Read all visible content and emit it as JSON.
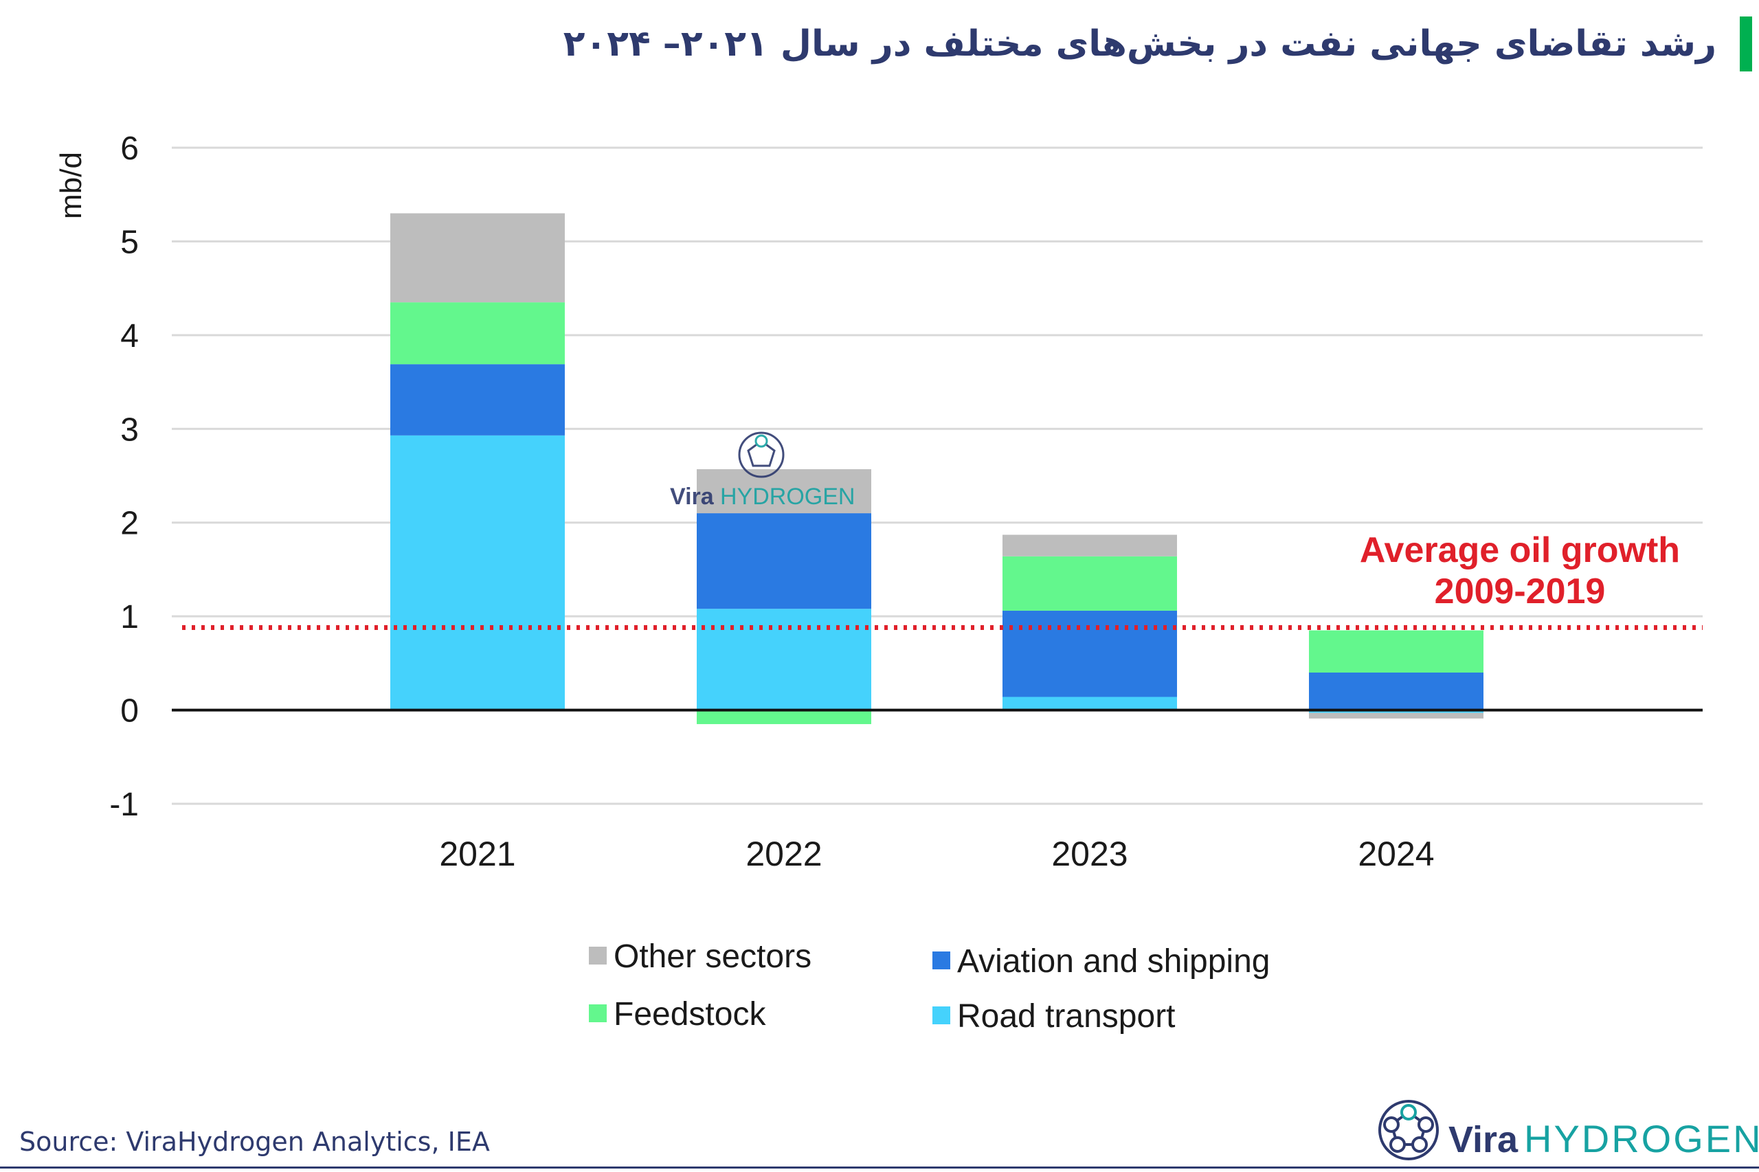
{
  "page": {
    "title": "رشد تقاضای جهانی نفت در بخش‌های مختلف در سال ۲۰۲۱– ۲۰۲۴",
    "source": "Source: ViraHydrogen Analytics, IEA",
    "watermark_vira": "Vira",
    "watermark_hydrogen": "HYDROGEN",
    "logo_vira": "Vira",
    "logo_hydrogen": "HYDROGEN",
    "colors": {
      "accent": "#00b050",
      "title": "#2e3a6e",
      "reference_line": "#e0202a"
    }
  },
  "chart_data": {
    "type": "bar",
    "stacked": true,
    "categories": [
      "2021",
      "2022",
      "2023",
      "2024"
    ],
    "ylabel": "mb/d",
    "ylim": [
      -1,
      6
    ],
    "yticks": [
      "-1",
      "0",
      "1",
      "2",
      "3",
      "4",
      "5",
      "6"
    ],
    "grid": true,
    "legend_position": "bottom",
    "series": [
      {
        "name": "Road transport",
        "color": "#45d2fc",
        "values": [
          2.93,
          1.08,
          0.14,
          -0.03
        ]
      },
      {
        "name": "Aviation and shipping",
        "color": "#2a7ae2",
        "values": [
          0.76,
          1.02,
          0.92,
          0.4
        ]
      },
      {
        "name": "Feedstock",
        "color": "#63f78d",
        "values": [
          0.66,
          -0.15,
          0.58,
          0.45
        ]
      },
      {
        "name": "Other sectors",
        "color": "#bdbdbd",
        "values": [
          0.95,
          0.47,
          0.23,
          -0.06
        ]
      }
    ],
    "reference_line": {
      "value": 0.88,
      "label_line1": "Average oil growth",
      "label_line2": "2009-2019"
    }
  }
}
